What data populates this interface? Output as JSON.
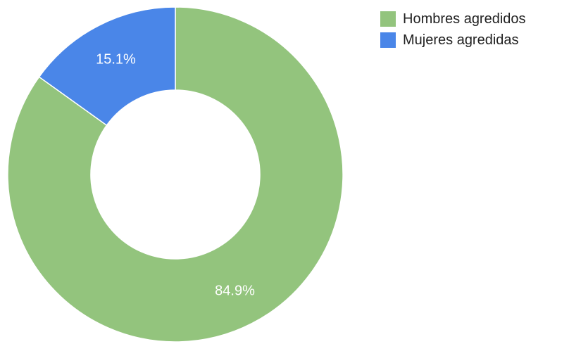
{
  "chart_data": {
    "type": "pie",
    "donut": true,
    "categories": [
      "Hombres agredidos",
      "Mujeres agredidas"
    ],
    "values": [
      84.9,
      15.1
    ],
    "value_labels": [
      "84.9%",
      "15.1%"
    ],
    "colors": [
      "#93c47d",
      "#4a86e8"
    ],
    "legend_position": "top-right",
    "title": ""
  }
}
